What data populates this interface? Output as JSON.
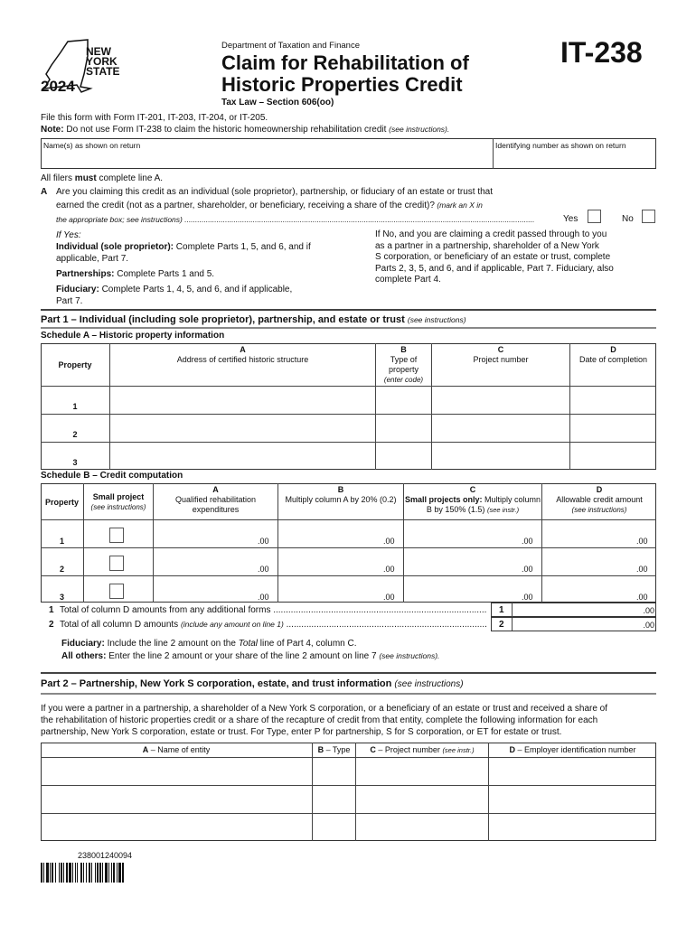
{
  "header": {
    "logo_text": [
      "NEW",
      "YORK",
      "STATE"
    ],
    "year": "2024",
    "department": "Department of Taxation and Finance",
    "title_line1": "Claim for Rehabilitation of",
    "title_line2": "Historic Properties Credit",
    "tax_law": "Tax Law – Section 606(oo)",
    "form_number": "IT-238"
  },
  "intro": {
    "file_with": "File this form with Form IT-201, IT-203, IT-204, or IT-205.",
    "note_label": "Note:",
    "note_text": " Do not use Form IT-238 to claim the historic homeownership rehabilitation credit ",
    "note_see": "(see instructions)."
  },
  "identity": {
    "name_label": "Name(s) as shown on return",
    "id_label": "Identifying number as shown on return"
  },
  "line_a": {
    "all_filers": "All filers must complete line A.",
    "letter": "A",
    "q1": "Are you claiming this credit as an individual (sole proprietor), partnership, or fiduciary of an estate or trust that",
    "q2": "earned the credit (not as a partner, shareholder, or beneficiary, receiving a share of the credit)?",
    "q2_note": " (mark an X in",
    "q3": "the appropriate box; see instructions)",
    "yes": "Yes",
    "no": "No"
  },
  "instructions": {
    "if_yes": "If Yes:",
    "individual_label": "Individual (sole proprietor):",
    "individual_text": " Complete Parts 1, 5, and 6, and if",
    "individual_text2": "applicable, Part 7.",
    "partnerships_label": "Partnerships:",
    "partnerships_text": " Complete Parts 1 and 5.",
    "fiduciary_label": "Fiduciary:",
    "fiduciary_text": " Complete Parts 1, 4, 5, and 6, and if applicable,",
    "fiduciary_text2": "Part 7.",
    "if_no": [
      "If No, and you are claiming a credit passed through to you",
      "as a partner in a partnership, shareholder of a New York",
      "S corporation, or beneficiary of an estate or trust, complete",
      "Parts 2, 3, 5, and 6, and if applicable, Part 7. Fiduciary, also",
      "complete Part 4."
    ]
  },
  "part1": {
    "title": "Part 1 – Individual (including sole proprietor), partnership, and estate or trust",
    "see": "(see instructions)",
    "schedule_a": {
      "title": "Schedule A – Historic property information",
      "property": "Property",
      "cols": [
        {
          "letter": "A",
          "label": "Address of certified historic structure"
        },
        {
          "letter": "B",
          "label": "Type of property",
          "sub": "(enter code)"
        },
        {
          "letter": "C",
          "label": "Project number"
        },
        {
          "letter": "D",
          "label": "Date of completion"
        }
      ],
      "rows": [
        "1",
        "2",
        "3"
      ]
    },
    "schedule_b": {
      "title": "Schedule B – Credit computation",
      "property": "Property",
      "small_project": "Small project",
      "small_sub": "(see instructions)",
      "cols": [
        {
          "letter": "A",
          "label": "Qualified rehabilitation expenditures"
        },
        {
          "letter": "B",
          "label": "Multiply column A by 20% (0.2)"
        },
        {
          "letter": "C",
          "label_bold": "Small projects only:",
          "label": " Multiply column B by 150% (1.5)",
          "sub": "(see instr.)"
        },
        {
          "letter": "D",
          "label": "Allowable credit amount",
          "sub": "(see instructions)"
        }
      ],
      "rows": [
        "1",
        "2",
        "3"
      ],
      "cents": ".00"
    },
    "line1": {
      "num": "1",
      "text": "Total of column D amounts from any additional forms",
      "value": ".00"
    },
    "line2": {
      "num": "2",
      "text": "Total of all column D amounts ",
      "note": "(include any amount on line 1)",
      "value": ".00"
    },
    "fiduciary_label": "Fiduciary:",
    "fiduciary_text": " Include the line 2 amount on the ",
    "fiduciary_total": "Total",
    "fiduciary_text2": " line of Part 4, column C.",
    "others_label": "All others:",
    "others_text": " Enter the line 2 amount or your share of the line 2 amount on line 7 ",
    "others_see": "(see instructions)."
  },
  "part2": {
    "title": "Part 2 – Partnership, New York S corporation, estate, and trust information",
    "see": "(see instructions)",
    "para": [
      "If you were a partner in a partnership, a shareholder of a New York S corporation, or a beneficiary of an estate or trust and received a share of",
      "the rehabilitation of historic properties credit or a share of the recapture of credit from that entity, complete the following information for each",
      "partnership, New York S corporation, estate or trust. For Type, enter P for partnership, S for S corporation, or ET for estate or trust."
    ],
    "cols": [
      {
        "letter": "A",
        "label": " – Name of entity"
      },
      {
        "letter": "B",
        "label": " – Type"
      },
      {
        "letter": "C",
        "label": " – Project number ",
        "sub": "(see instr.)"
      },
      {
        "letter": "D",
        "label": " – Employer identification number"
      }
    ]
  },
  "footer": {
    "barcode_number": "238001240094"
  }
}
